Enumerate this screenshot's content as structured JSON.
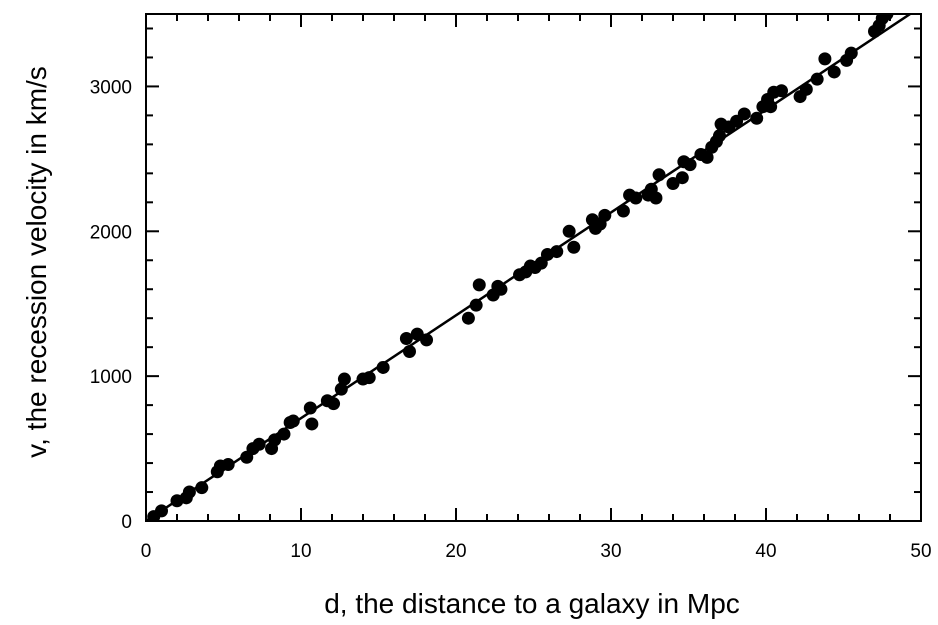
{
  "chart_data": {
    "type": "scatter",
    "title": "",
    "xlabel": "d, the distance to a galaxy in Mpc",
    "ylabel": "v, the recession velocity in km/s",
    "xlim": [
      0,
      50
    ],
    "ylim": [
      0,
      3500
    ],
    "x_ticks": [
      0,
      10,
      20,
      30,
      40,
      50
    ],
    "y_ticks": [
      0,
      1000,
      2000,
      3000
    ],
    "x_tick_labels": [
      "0",
      "10",
      "20",
      "30",
      "40",
      "50"
    ],
    "y_tick_labels": [
      "0",
      "1000",
      "2000",
      "3000"
    ],
    "grid": false,
    "legend": "none",
    "marker_color": "#000000",
    "fit_line": {
      "x": [
        0,
        50
      ],
      "y": [
        0,
        3550
      ]
    },
    "points": [
      [
        0.5,
        30
      ],
      [
        1.0,
        70
      ],
      [
        2.0,
        140
      ],
      [
        2.6,
        160
      ],
      [
        2.8,
        200
      ],
      [
        3.6,
        230
      ],
      [
        4.6,
        340
      ],
      [
        4.8,
        380
      ],
      [
        5.3,
        390
      ],
      [
        6.5,
        440
      ],
      [
        6.9,
        500
      ],
      [
        7.3,
        530
      ],
      [
        8.1,
        500
      ],
      [
        8.3,
        560
      ],
      [
        8.9,
        600
      ],
      [
        9.3,
        680
      ],
      [
        9.5,
        690
      ],
      [
        10.6,
        780
      ],
      [
        10.7,
        670
      ],
      [
        11.7,
        830
      ],
      [
        12.1,
        810
      ],
      [
        12.6,
        910
      ],
      [
        12.8,
        980
      ],
      [
        14.0,
        980
      ],
      [
        14.4,
        990
      ],
      [
        15.3,
        1060
      ],
      [
        16.8,
        1260
      ],
      [
        17.0,
        1170
      ],
      [
        17.5,
        1290
      ],
      [
        18.1,
        1250
      ],
      [
        20.8,
        1400
      ],
      [
        21.3,
        1490
      ],
      [
        21.5,
        1630
      ],
      [
        22.4,
        1560
      ],
      [
        22.7,
        1620
      ],
      [
        22.9,
        1600
      ],
      [
        24.1,
        1700
      ],
      [
        24.5,
        1720
      ],
      [
        24.8,
        1760
      ],
      [
        25.1,
        1750
      ],
      [
        25.5,
        1780
      ],
      [
        25.9,
        1840
      ],
      [
        26.5,
        1860
      ],
      [
        27.3,
        2000
      ],
      [
        27.6,
        1890
      ],
      [
        28.8,
        2080
      ],
      [
        29.0,
        2020
      ],
      [
        29.3,
        2050
      ],
      [
        29.6,
        2110
      ],
      [
        30.8,
        2140
      ],
      [
        31.2,
        2250
      ],
      [
        31.6,
        2230
      ],
      [
        32.4,
        2250
      ],
      [
        32.6,
        2290
      ],
      [
        32.9,
        2230
      ],
      [
        33.1,
        2390
      ],
      [
        34.0,
        2330
      ],
      [
        34.6,
        2370
      ],
      [
        34.7,
        2480
      ],
      [
        35.1,
        2460
      ],
      [
        35.8,
        2530
      ],
      [
        36.2,
        2510
      ],
      [
        36.5,
        2580
      ],
      [
        36.8,
        2620
      ],
      [
        37.0,
        2660
      ],
      [
        37.1,
        2740
      ],
      [
        37.6,
        2720
      ],
      [
        38.1,
        2760
      ],
      [
        38.6,
        2810
      ],
      [
        39.4,
        2780
      ],
      [
        39.8,
        2860
      ],
      [
        40.1,
        2910
      ],
      [
        40.3,
        2860
      ],
      [
        40.5,
        2960
      ],
      [
        41.0,
        2970
      ],
      [
        42.2,
        2930
      ],
      [
        42.6,
        2980
      ],
      [
        43.3,
        3050
      ],
      [
        43.8,
        3190
      ],
      [
        44.4,
        3100
      ],
      [
        45.2,
        3180
      ],
      [
        45.5,
        3230
      ],
      [
        47.0,
        3380
      ],
      [
        47.3,
        3420
      ],
      [
        47.5,
        3470
      ],
      [
        47.8,
        3500
      ]
    ]
  }
}
